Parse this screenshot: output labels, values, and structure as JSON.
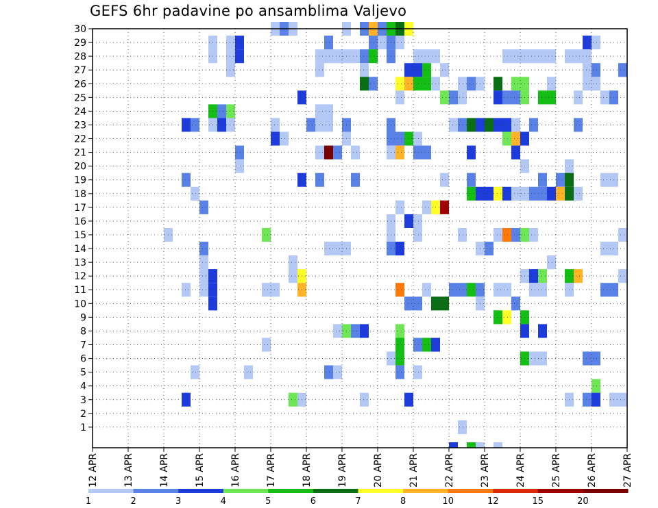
{
  "title": "GEFS 6hr padavine po ansamblima Valjevo",
  "chart_data": {
    "type": "heatmap",
    "title": "GEFS 6hr padavine po ansamblima Valjevo",
    "x_ticks": [
      "12 APR",
      "13 APR",
      "14 APR",
      "15 APR",
      "16 APR",
      "17 APR",
      "18 APR",
      "19 APR",
      "20 APR",
      "21 APR",
      "22 APR",
      "23 APR",
      "24 APR",
      "25 APR",
      "26 APR",
      "27 APR"
    ],
    "y_ticks": [
      "1",
      "2",
      "3",
      "4",
      "5",
      "6",
      "7",
      "8",
      "9",
      "10",
      "11",
      "12",
      "13",
      "14",
      "15",
      "16",
      "17",
      "18",
      "19",
      "20",
      "21",
      "22",
      "23",
      "24",
      "25",
      "26",
      "27",
      "28",
      "29",
      "30"
    ],
    "xlim": [
      0,
      60
    ],
    "ylim": [
      0,
      30
    ],
    "grid": "dotted",
    "colorbar": {
      "position": "bottom",
      "labels": [
        "1",
        "2",
        "3",
        "4",
        "5",
        "6",
        "7",
        "8",
        "10",
        "12",
        "15",
        "20"
      ],
      "colors": [
        "#b4c8f5",
        "#5a82e6",
        "#1e3cdc",
        "#6ee655",
        "#14be14",
        "#0a6e14",
        "#ffff28",
        "#ffb428",
        "#ff780a",
        "#dc280a",
        "#a00000",
        "#780000"
      ]
    },
    "cell_levels_note": "level 1..12 indexes colorbar.colors; x = 6-hourly step from 12 APR 00Z, y = ensemble member",
    "cells": [
      [
        20,
        30,
        1
      ],
      [
        21,
        30,
        2
      ],
      [
        22,
        30,
        1
      ],
      [
        28,
        30,
        1
      ],
      [
        30,
        30,
        2
      ],
      [
        31,
        30,
        8
      ],
      [
        32,
        30,
        2
      ],
      [
        33,
        30,
        5
      ],
      [
        34,
        30,
        6
      ],
      [
        35,
        30,
        7
      ],
      [
        13,
        29,
        1
      ],
      [
        15,
        29,
        1
      ],
      [
        16,
        29,
        3
      ],
      [
        26,
        29,
        2
      ],
      [
        31,
        29,
        2
      ],
      [
        32,
        29,
        1
      ],
      [
        33,
        29,
        2
      ],
      [
        34,
        29,
        1
      ],
      [
        55,
        29,
        3
      ],
      [
        56,
        29,
        1
      ],
      [
        13,
        28,
        1
      ],
      [
        15,
        28,
        1
      ],
      [
        16,
        28,
        3
      ],
      [
        25,
        28,
        1
      ],
      [
        26,
        28,
        1
      ],
      [
        27,
        28,
        1
      ],
      [
        28,
        28,
        1
      ],
      [
        29,
        28,
        1
      ],
      [
        30,
        28,
        2
      ],
      [
        31,
        28,
        5
      ],
      [
        33,
        28,
        2
      ],
      [
        36,
        28,
        1
      ],
      [
        37,
        28,
        1
      ],
      [
        38,
        28,
        1
      ],
      [
        46,
        28,
        1
      ],
      [
        47,
        28,
        1
      ],
      [
        48,
        28,
        1
      ],
      [
        49,
        28,
        1
      ],
      [
        50,
        28,
        1
      ],
      [
        51,
        28,
        1
      ],
      [
        53,
        28,
        1
      ],
      [
        54,
        28,
        1
      ],
      [
        55,
        28,
        1
      ],
      [
        15,
        27,
        1
      ],
      [
        25,
        27,
        1
      ],
      [
        30,
        27,
        1
      ],
      [
        35,
        27,
        3
      ],
      [
        36,
        27,
        3
      ],
      [
        37,
        27,
        5
      ],
      [
        39,
        27,
        1
      ],
      [
        55,
        27,
        1
      ],
      [
        56,
        27,
        2
      ],
      [
        59,
        27,
        2
      ],
      [
        30,
        26,
        6
      ],
      [
        31,
        26,
        2
      ],
      [
        34,
        26,
        7
      ],
      [
        35,
        26,
        8
      ],
      [
        36,
        26,
        5
      ],
      [
        37,
        26,
        5
      ],
      [
        38,
        26,
        1
      ],
      [
        41,
        26,
        1
      ],
      [
        42,
        26,
        2
      ],
      [
        43,
        26,
        1
      ],
      [
        45,
        26,
        6
      ],
      [
        47,
        26,
        4
      ],
      [
        48,
        26,
        4
      ],
      [
        51,
        26,
        1
      ],
      [
        55,
        26,
        1
      ],
      [
        56,
        26,
        1
      ],
      [
        23,
        25,
        3
      ],
      [
        34,
        25,
        1
      ],
      [
        39,
        25,
        4
      ],
      [
        40,
        25,
        2
      ],
      [
        41,
        25,
        1
      ],
      [
        45,
        25,
        3
      ],
      [
        46,
        25,
        2
      ],
      [
        47,
        25,
        2
      ],
      [
        48,
        25,
        4
      ],
      [
        50,
        25,
        5
      ],
      [
        51,
        25,
        5
      ],
      [
        54,
        25,
        1
      ],
      [
        57,
        25,
        1
      ],
      [
        58,
        25,
        2
      ],
      [
        13,
        24,
        5
      ],
      [
        14,
        24,
        2
      ],
      [
        15,
        24,
        4
      ],
      [
        25,
        24,
        1
      ],
      [
        26,
        24,
        1
      ],
      [
        10,
        23,
        3
      ],
      [
        11,
        23,
        2
      ],
      [
        13,
        23,
        1
      ],
      [
        14,
        23,
        3
      ],
      [
        15,
        23,
        1
      ],
      [
        20,
        23,
        1
      ],
      [
        24,
        23,
        2
      ],
      [
        25,
        23,
        1
      ],
      [
        26,
        23,
        1
      ],
      [
        28,
        23,
        2
      ],
      [
        33,
        23,
        2
      ],
      [
        40,
        23,
        1
      ],
      [
        41,
        23,
        2
      ],
      [
        42,
        23,
        6
      ],
      [
        43,
        23,
        3
      ],
      [
        44,
        23,
        6
      ],
      [
        45,
        23,
        3
      ],
      [
        46,
        23,
        3
      ],
      [
        47,
        23,
        1
      ],
      [
        49,
        23,
        2
      ],
      [
        54,
        23,
        2
      ],
      [
        20,
        22,
        3
      ],
      [
        21,
        22,
        1
      ],
      [
        28,
        22,
        1
      ],
      [
        33,
        22,
        2
      ],
      [
        34,
        22,
        2
      ],
      [
        35,
        22,
        5
      ],
      [
        36,
        22,
        1
      ],
      [
        46,
        22,
        4
      ],
      [
        47,
        22,
        8
      ],
      [
        48,
        22,
        3
      ],
      [
        16,
        21,
        2
      ],
      [
        25,
        21,
        1
      ],
      [
        26,
        21,
        12
      ],
      [
        27,
        21,
        2
      ],
      [
        29,
        21,
        1
      ],
      [
        33,
        21,
        1
      ],
      [
        34,
        21,
        8
      ],
      [
        36,
        21,
        2
      ],
      [
        37,
        21,
        2
      ],
      [
        42,
        21,
        3
      ],
      [
        47,
        21,
        3
      ],
      [
        16,
        20,
        1
      ],
      [
        48,
        20,
        1
      ],
      [
        53,
        20,
        1
      ],
      [
        10,
        19,
        2
      ],
      [
        23,
        19,
        3
      ],
      [
        25,
        19,
        2
      ],
      [
        29,
        19,
        2
      ],
      [
        39,
        19,
        1
      ],
      [
        42,
        19,
        2
      ],
      [
        50,
        19,
        2
      ],
      [
        52,
        19,
        2
      ],
      [
        53,
        19,
        6
      ],
      [
        57,
        19,
        1
      ],
      [
        58,
        19,
        1
      ],
      [
        11,
        18,
        1
      ],
      [
        42,
        18,
        5
      ],
      [
        43,
        18,
        3
      ],
      [
        44,
        18,
        3
      ],
      [
        45,
        18,
        7
      ],
      [
        46,
        18,
        3
      ],
      [
        47,
        18,
        1
      ],
      [
        48,
        18,
        1
      ],
      [
        49,
        18,
        2
      ],
      [
        50,
        18,
        2
      ],
      [
        51,
        18,
        3
      ],
      [
        52,
        18,
        8
      ],
      [
        53,
        18,
        6
      ],
      [
        54,
        18,
        1
      ],
      [
        12,
        17,
        2
      ],
      [
        34,
        17,
        1
      ],
      [
        37,
        17,
        1
      ],
      [
        38,
        17,
        7
      ],
      [
        39,
        17,
        11
      ],
      [
        33,
        16,
        1
      ],
      [
        35,
        16,
        3
      ],
      [
        36,
        16,
        1
      ],
      [
        8,
        15,
        1
      ],
      [
        19,
        15,
        4
      ],
      [
        33,
        15,
        1
      ],
      [
        36,
        15,
        1
      ],
      [
        41,
        15,
        1
      ],
      [
        45,
        15,
        1
      ],
      [
        46,
        15,
        9
      ],
      [
        47,
        15,
        2
      ],
      [
        48,
        15,
        4
      ],
      [
        49,
        15,
        1
      ],
      [
        59,
        15,
        1
      ],
      [
        12,
        14,
        2
      ],
      [
        26,
        14,
        1
      ],
      [
        27,
        14,
        1
      ],
      [
        28,
        14,
        1
      ],
      [
        33,
        14,
        2
      ],
      [
        34,
        14,
        3
      ],
      [
        43,
        14,
        1
      ],
      [
        44,
        14,
        2
      ],
      [
        57,
        14,
        1
      ],
      [
        58,
        14,
        1
      ],
      [
        12,
        13,
        1
      ],
      [
        22,
        13,
        1
      ],
      [
        51,
        13,
        1
      ],
      [
        12,
        12,
        1
      ],
      [
        13,
        12,
        3
      ],
      [
        22,
        12,
        1
      ],
      [
        23,
        12,
        7
      ],
      [
        48,
        12,
        1
      ],
      [
        49,
        12,
        3
      ],
      [
        50,
        12,
        4
      ],
      [
        53,
        12,
        5
      ],
      [
        54,
        12,
        8
      ],
      [
        59,
        12,
        1
      ],
      [
        10,
        11,
        1
      ],
      [
        12,
        11,
        1
      ],
      [
        13,
        11,
        3
      ],
      [
        19,
        11,
        1
      ],
      [
        20,
        11,
        1
      ],
      [
        23,
        11,
        8
      ],
      [
        34,
        11,
        9
      ],
      [
        37,
        11,
        1
      ],
      [
        40,
        11,
        2
      ],
      [
        41,
        11,
        2
      ],
      [
        42,
        11,
        5
      ],
      [
        43,
        11,
        2
      ],
      [
        45,
        11,
        1
      ],
      [
        46,
        11,
        1
      ],
      [
        49,
        11,
        1
      ],
      [
        50,
        11,
        1
      ],
      [
        53,
        11,
        1
      ],
      [
        57,
        11,
        2
      ],
      [
        58,
        11,
        2
      ],
      [
        13,
        10,
        3
      ],
      [
        35,
        10,
        2
      ],
      [
        36,
        10,
        2
      ],
      [
        38,
        10,
        6
      ],
      [
        39,
        10,
        6
      ],
      [
        43,
        10,
        1
      ],
      [
        47,
        10,
        2
      ],
      [
        45,
        9,
        5
      ],
      [
        46,
        9,
        7
      ],
      [
        48,
        9,
        5
      ],
      [
        27,
        8,
        1
      ],
      [
        28,
        8,
        4
      ],
      [
        29,
        8,
        2
      ],
      [
        30,
        8,
        3
      ],
      [
        34,
        8,
        4
      ],
      [
        48,
        8,
        3
      ],
      [
        50,
        8,
        3
      ],
      [
        19,
        7,
        1
      ],
      [
        34,
        7,
        5
      ],
      [
        36,
        7,
        2
      ],
      [
        37,
        7,
        5
      ],
      [
        38,
        7,
        3
      ],
      [
        33,
        6,
        1
      ],
      [
        34,
        6,
        5
      ],
      [
        48,
        6,
        5
      ],
      [
        49,
        6,
        1
      ],
      [
        50,
        6,
        1
      ],
      [
        55,
        6,
        2
      ],
      [
        56,
        6,
        2
      ],
      [
        11,
        5,
        1
      ],
      [
        17,
        5,
        1
      ],
      [
        26,
        5,
        2
      ],
      [
        27,
        5,
        1
      ],
      [
        34,
        5,
        2
      ],
      [
        36,
        5,
        1
      ],
      [
        56,
        4,
        4
      ],
      [
        10,
        3,
        3
      ],
      [
        22,
        3,
        4
      ],
      [
        23,
        3,
        1
      ],
      [
        30,
        3,
        1
      ],
      [
        35,
        3,
        3
      ],
      [
        53,
        3,
        1
      ],
      [
        55,
        3,
        2
      ],
      [
        56,
        3,
        3
      ],
      [
        58,
        3,
        1
      ],
      [
        59,
        3,
        1
      ],
      [
        41,
        1,
        1
      ],
      [
        40,
        0,
        3
      ],
      [
        42,
        0,
        5
      ],
      [
        43,
        0,
        1
      ],
      [
        45,
        0,
        1
      ]
    ]
  }
}
